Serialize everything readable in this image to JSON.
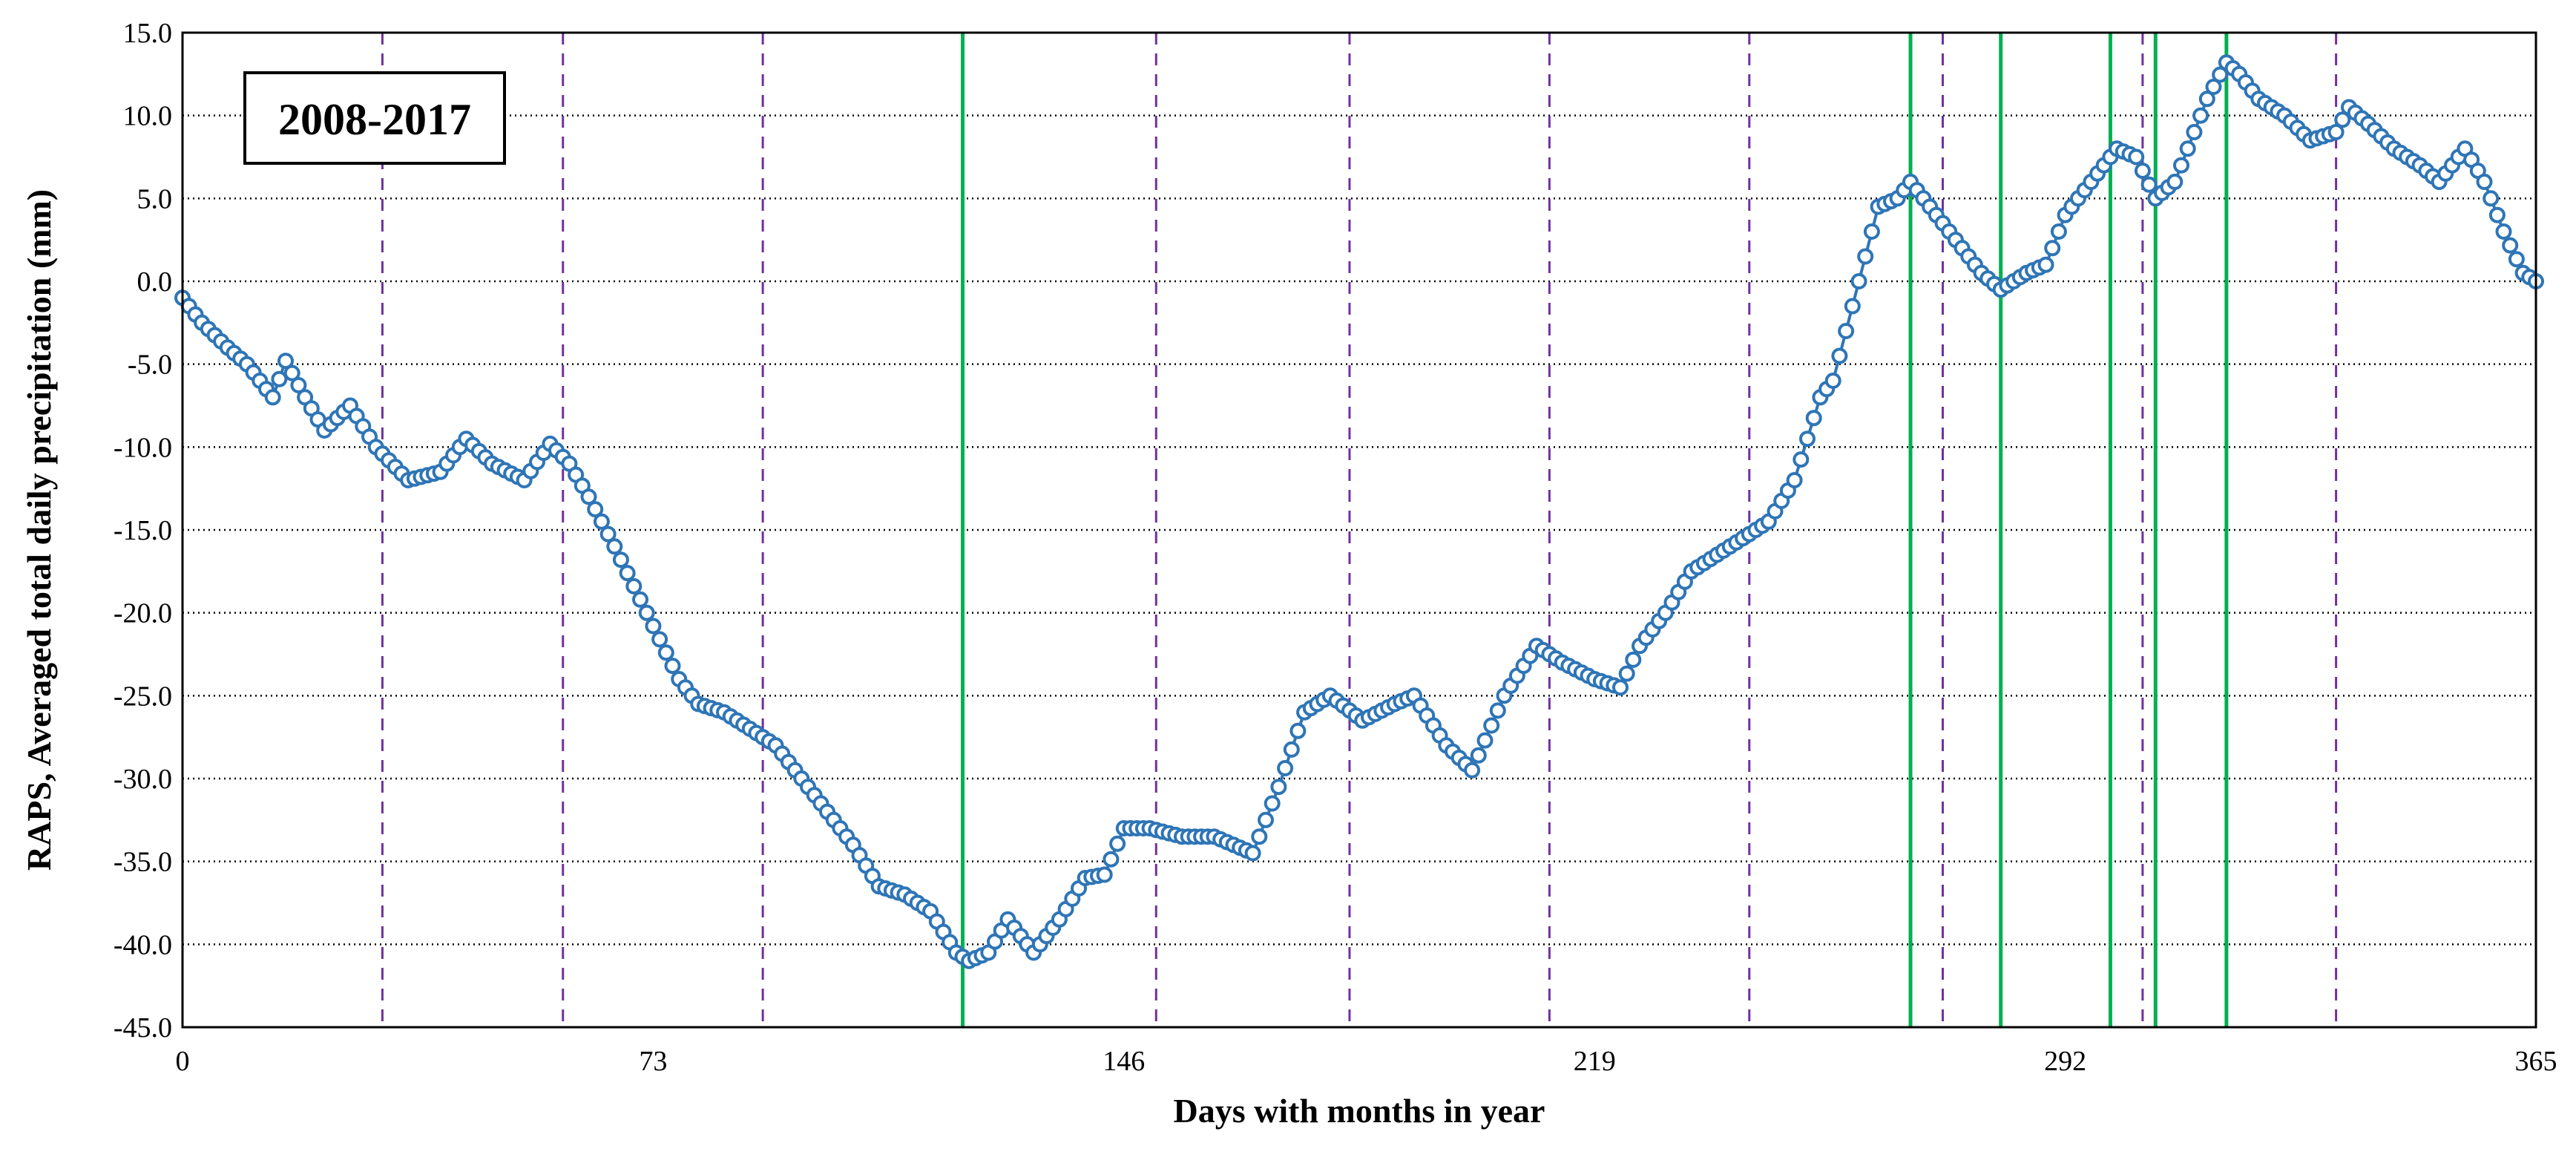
{
  "chart_data": {
    "type": "line",
    "title": "2008-2017",
    "xlabel": "Days with months in year",
    "ylabel": "RAPS, Averaged total daily precipitation  (mm)",
    "xlim": [
      0,
      365
    ],
    "ylim": [
      -45,
      15
    ],
    "x_ticks": [
      0,
      73,
      146,
      219,
      292,
      365
    ],
    "x_tick_labels": [
      "0",
      "73",
      "146",
      "219",
      "292",
      "365"
    ],
    "y_ticks": [
      15,
      10,
      5,
      0,
      -5,
      -10,
      -15,
      -20,
      -25,
      -30,
      -35,
      -40,
      -45
    ],
    "y_tick_labels": [
      "15.0",
      "10.0",
      "5.0",
      "0.0",
      "-5.0",
      "-10.0",
      "-15.0",
      "-20.0",
      "-25.0",
      "-30.0",
      "-35.0",
      "-40.0",
      "-45.0"
    ],
    "grid": "horizontal dotted",
    "colors": {
      "series": "#2e75b6",
      "marker_fill": "#ffffff",
      "month_lines": "#7030a0",
      "change_points": "#00b050",
      "grid": "#000000"
    },
    "month_boundaries": [
      31,
      59,
      90,
      151,
      181,
      212,
      243,
      273,
      304,
      334
    ],
    "change_points": [
      121,
      268,
      282,
      299,
      306,
      317
    ],
    "series": [
      {
        "keypoints": [
          [
            0,
            -1
          ],
          [
            3,
            -2.5
          ],
          [
            7,
            -4
          ],
          [
            10,
            -5
          ],
          [
            14,
            -7
          ],
          [
            16,
            -4.8
          ],
          [
            19,
            -7
          ],
          [
            22,
            -9
          ],
          [
            26,
            -7.5
          ],
          [
            30,
            -10
          ],
          [
            35,
            -12
          ],
          [
            40,
            -11.5
          ],
          [
            44,
            -9.5
          ],
          [
            48,
            -11
          ],
          [
            53,
            -12
          ],
          [
            57,
            -9.8
          ],
          [
            60,
            -11
          ],
          [
            63,
            -13
          ],
          [
            67,
            -16
          ],
          [
            72,
            -20
          ],
          [
            77,
            -24
          ],
          [
            80,
            -25.5
          ],
          [
            84,
            -26
          ],
          [
            88,
            -27
          ],
          [
            92,
            -28
          ],
          [
            96,
            -30
          ],
          [
            100,
            -32
          ],
          [
            104,
            -34
          ],
          [
            108,
            -36.5
          ],
          [
            112,
            -37
          ],
          [
            116,
            -38
          ],
          [
            120,
            -40.5
          ],
          [
            122,
            -41
          ],
          [
            125,
            -40.5
          ],
          [
            128,
            -38.5
          ],
          [
            132,
            -40.5
          ],
          [
            136,
            -38.5
          ],
          [
            140,
            -36
          ],
          [
            143,
            -35.8
          ],
          [
            146,
            -33
          ],
          [
            150,
            -33
          ],
          [
            155,
            -33.5
          ],
          [
            160,
            -33.5
          ],
          [
            166,
            -34.5
          ],
          [
            170,
            -30.5
          ],
          [
            174,
            -26
          ],
          [
            178,
            -25
          ],
          [
            183,
            -26.5
          ],
          [
            188,
            -25.5
          ],
          [
            191,
            -25
          ],
          [
            196,
            -28
          ],
          [
            200,
            -29.5
          ],
          [
            205,
            -25
          ],
          [
            210,
            -22
          ],
          [
            214,
            -23
          ],
          [
            219,
            -24
          ],
          [
            223,
            -24.5
          ],
          [
            226,
            -22
          ],
          [
            230,
            -20
          ],
          [
            234,
            -17.5
          ],
          [
            238,
            -16.5
          ],
          [
            242,
            -15.5
          ],
          [
            246,
            -14.5
          ],
          [
            250,
            -12
          ],
          [
            254,
            -7
          ],
          [
            256,
            -6
          ],
          [
            258,
            -3
          ],
          [
            260,
            0
          ],
          [
            263,
            4.5
          ],
          [
            266,
            5
          ],
          [
            268,
            6
          ],
          [
            272,
            4
          ],
          [
            276,
            2
          ],
          [
            279,
            0.5
          ],
          [
            282,
            -0.5
          ],
          [
            286,
            0.5
          ],
          [
            289,
            1
          ],
          [
            292,
            4
          ],
          [
            296,
            6
          ],
          [
            300,
            8
          ],
          [
            303,
            7.5
          ],
          [
            306,
            5
          ],
          [
            309,
            6
          ],
          [
            312,
            9
          ],
          [
            314,
            11
          ],
          [
            317,
            13.2
          ],
          [
            319,
            12.5
          ],
          [
            322,
            11
          ],
          [
            326,
            10
          ],
          [
            330,
            8.5
          ],
          [
            334,
            9
          ],
          [
            336,
            10.5
          ],
          [
            339,
            9.5
          ],
          [
            343,
            8
          ],
          [
            347,
            7
          ],
          [
            350,
            6
          ],
          [
            354,
            8
          ],
          [
            357,
            6
          ],
          [
            360,
            3
          ],
          [
            363,
            0.5
          ],
          [
            365,
            0
          ]
        ]
      }
    ]
  }
}
